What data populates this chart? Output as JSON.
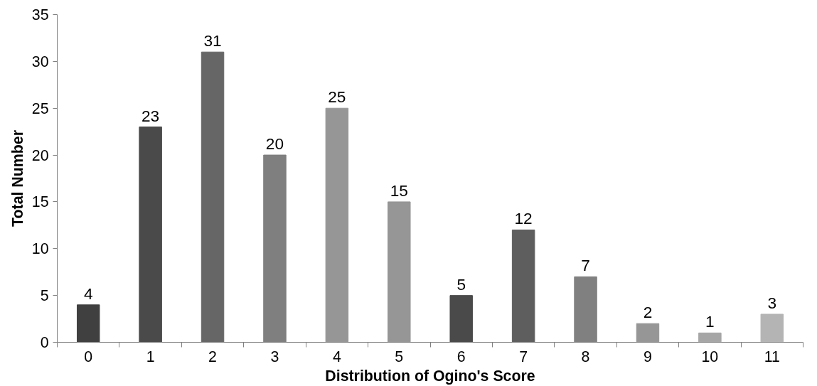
{
  "chart_data": {
    "type": "bar",
    "xlabel": "Distribution of Ogino's Score",
    "ylabel": "Total Number",
    "categories": [
      "0",
      "1",
      "2",
      "3",
      "4",
      "5",
      "6",
      "7",
      "8",
      "9",
      "10",
      "11"
    ],
    "values": [
      4,
      23,
      31,
      20,
      25,
      15,
      5,
      12,
      7,
      2,
      1,
      3
    ],
    "colors": [
      "#404040",
      "#4a4a4a",
      "#666666",
      "#7f7f7f",
      "#969696",
      "#969696",
      "#4a4a4a",
      "#5e5e5e",
      "#808080",
      "#969696",
      "#a6a6a6",
      "#b4b4b4"
    ],
    "ylim": [
      0,
      35
    ],
    "yticks": [
      0,
      5,
      10,
      15,
      20,
      25,
      30,
      35
    ],
    "data_labels": true,
    "grid": false
  }
}
